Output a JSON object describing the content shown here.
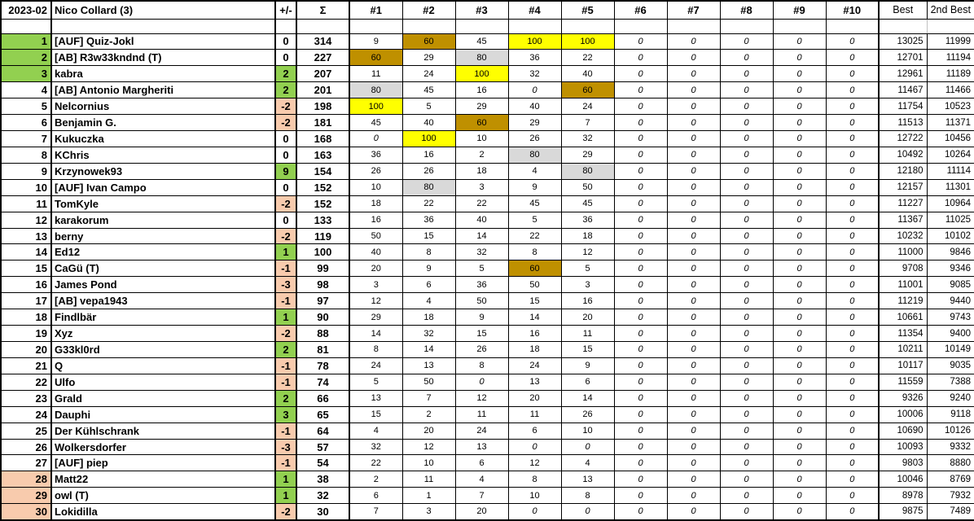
{
  "header": {
    "period": "2023-02",
    "player": "Nico Collard (3)",
    "delta_label": "+/-",
    "sum_label": "Σ",
    "rounds": [
      "#1",
      "#2",
      "#3",
      "#4",
      "#5",
      "#6",
      "#7",
      "#8",
      "#9",
      "#10"
    ],
    "best_label": "Best",
    "second_best_label": "2nd Best"
  },
  "colors": {
    "green": "#92D050",
    "orange": "#F8CBAD",
    "yellow": "#FFFF00",
    "gray": "#D9D9D9",
    "dark_yellow": "#BF9000"
  },
  "highlights": {
    "100": "yellow",
    "80": "gray",
    "60": "dark_yellow"
  },
  "score_zero_italic": true,
  "rows": [
    {
      "rank": 1,
      "rank_bg": "green",
      "name": "[AUF] Quiz-Jokl",
      "delta": 0,
      "total": 314,
      "scores": [
        9,
        60,
        45,
        100,
        100,
        0,
        0,
        0,
        0,
        0
      ],
      "best": 13025,
      "second_best": 11999
    },
    {
      "rank": 2,
      "rank_bg": "green",
      "name": "[AB] R3w33kndnd (T)",
      "delta": 0,
      "total": 227,
      "scores": [
        60,
        29,
        80,
        36,
        22,
        0,
        0,
        0,
        0,
        0
      ],
      "best": 12701,
      "second_best": 11194
    },
    {
      "rank": 3,
      "rank_bg": "green",
      "name": "kabra",
      "delta": 2,
      "total": 207,
      "scores": [
        11,
        24,
        100,
        32,
        40,
        0,
        0,
        0,
        0,
        0
      ],
      "best": 12961,
      "second_best": 11189
    },
    {
      "rank": 4,
      "rank_bg": null,
      "name": "[AB] Antonio Margheriti",
      "delta": 2,
      "total": 201,
      "scores": [
        80,
        45,
        16,
        0,
        60,
        0,
        0,
        0,
        0,
        0
      ],
      "best": 11467,
      "second_best": 11466
    },
    {
      "rank": 5,
      "rank_bg": null,
      "name": "Nelcornius",
      "delta": -2,
      "total": 198,
      "scores": [
        100,
        5,
        29,
        40,
        24,
        0,
        0,
        0,
        0,
        0
      ],
      "best": 11754,
      "second_best": 10523
    },
    {
      "rank": 6,
      "rank_bg": null,
      "name": "Benjamin G.",
      "delta": -2,
      "total": 181,
      "scores": [
        45,
        40,
        60,
        29,
        7,
        0,
        0,
        0,
        0,
        0
      ],
      "best": 11513,
      "second_best": 11371
    },
    {
      "rank": 7,
      "rank_bg": null,
      "name": "Kukuczka",
      "delta": 0,
      "total": 168,
      "scores": [
        0,
        100,
        10,
        26,
        32,
        0,
        0,
        0,
        0,
        0
      ],
      "best": 12722,
      "second_best": 10456
    },
    {
      "rank": 8,
      "rank_bg": null,
      "name": "KChris",
      "delta": 0,
      "total": 163,
      "scores": [
        36,
        16,
        2,
        80,
        29,
        0,
        0,
        0,
        0,
        0
      ],
      "best": 10492,
      "second_best": 10264
    },
    {
      "rank": 9,
      "rank_bg": null,
      "name": "Krzynowek93",
      "delta": 9,
      "total": 154,
      "scores": [
        26,
        26,
        18,
        4,
        80,
        0,
        0,
        0,
        0,
        0
      ],
      "best": 12180,
      "second_best": 11114
    },
    {
      "rank": 10,
      "rank_bg": null,
      "name": "[AUF] Ivan Campo",
      "delta": 0,
      "total": 152,
      "scores": [
        10,
        80,
        3,
        9,
        50,
        0,
        0,
        0,
        0,
        0
      ],
      "best": 12157,
      "second_best": 11301
    },
    {
      "rank": 11,
      "rank_bg": null,
      "name": "TomKyle",
      "delta": -2,
      "total": 152,
      "scores": [
        18,
        22,
        22,
        45,
        45,
        0,
        0,
        0,
        0,
        0
      ],
      "best": 11227,
      "second_best": 10964
    },
    {
      "rank": 12,
      "rank_bg": null,
      "name": "karakorum",
      "delta": 0,
      "total": 133,
      "scores": [
        16,
        36,
        40,
        5,
        36,
        0,
        0,
        0,
        0,
        0
      ],
      "best": 11367,
      "second_best": 11025
    },
    {
      "rank": 13,
      "rank_bg": null,
      "name": "berny",
      "delta": -2,
      "total": 119,
      "scores": [
        50,
        15,
        14,
        22,
        18,
        0,
        0,
        0,
        0,
        0
      ],
      "best": 10232,
      "second_best": 10102
    },
    {
      "rank": 14,
      "rank_bg": null,
      "name": "Ed12",
      "delta": 1,
      "total": 100,
      "scores": [
        40,
        8,
        32,
        8,
        12,
        0,
        0,
        0,
        0,
        0
      ],
      "best": 11000,
      "second_best": 9846
    },
    {
      "rank": 15,
      "rank_bg": null,
      "name": "CaGü (T)",
      "delta": -1,
      "total": 99,
      "scores": [
        20,
        9,
        5,
        60,
        5,
        0,
        0,
        0,
        0,
        0
      ],
      "best": 9708,
      "second_best": 9346
    },
    {
      "rank": 16,
      "rank_bg": null,
      "name": "James Pond",
      "delta": -3,
      "total": 98,
      "scores": [
        3,
        6,
        36,
        50,
        3,
        0,
        0,
        0,
        0,
        0
      ],
      "best": 11001,
      "second_best": 9085
    },
    {
      "rank": 17,
      "rank_bg": null,
      "name": "[AB] vepa1943",
      "delta": -1,
      "total": 97,
      "scores": [
        12,
        4,
        50,
        15,
        16,
        0,
        0,
        0,
        0,
        0
      ],
      "best": 11219,
      "second_best": 9440
    },
    {
      "rank": 18,
      "rank_bg": null,
      "name": "Findlbär",
      "delta": 1,
      "total": 90,
      "scores": [
        29,
        18,
        9,
        14,
        20,
        0,
        0,
        0,
        0,
        0
      ],
      "best": 10661,
      "second_best": 9743
    },
    {
      "rank": 19,
      "rank_bg": null,
      "name": "Xyz",
      "delta": -2,
      "total": 88,
      "scores": [
        14,
        32,
        15,
        16,
        11,
        0,
        0,
        0,
        0,
        0
      ],
      "best": 11354,
      "second_best": 9400
    },
    {
      "rank": 20,
      "rank_bg": null,
      "name": "G33kl0rd",
      "delta": 2,
      "total": 81,
      "scores": [
        8,
        14,
        26,
        18,
        15,
        0,
        0,
        0,
        0,
        0
      ],
      "best": 10211,
      "second_best": 10149
    },
    {
      "rank": 21,
      "rank_bg": null,
      "name": "Q",
      "delta": -1,
      "total": 78,
      "scores": [
        24,
        13,
        8,
        24,
        9,
        0,
        0,
        0,
        0,
        0
      ],
      "best": 10117,
      "second_best": 9035
    },
    {
      "rank": 22,
      "rank_bg": null,
      "name": "Ulfo",
      "delta": -1,
      "total": 74,
      "scores": [
        5,
        50,
        0,
        13,
        6,
        0,
        0,
        0,
        0,
        0
      ],
      "best": 11559,
      "second_best": 7388
    },
    {
      "rank": 23,
      "rank_bg": null,
      "name": "Grald",
      "delta": 2,
      "total": 66,
      "scores": [
        13,
        7,
        12,
        20,
        14,
        0,
        0,
        0,
        0,
        0
      ],
      "best": 9326,
      "second_best": 9240
    },
    {
      "rank": 24,
      "rank_bg": null,
      "name": "Dauphi",
      "delta": 3,
      "total": 65,
      "scores": [
        15,
        2,
        11,
        11,
        26,
        0,
        0,
        0,
        0,
        0
      ],
      "best": 10006,
      "second_best": 9118
    },
    {
      "rank": 25,
      "rank_bg": null,
      "name": "Der Kühlschrank",
      "delta": -1,
      "total": 64,
      "scores": [
        4,
        20,
        24,
        6,
        10,
        0,
        0,
        0,
        0,
        0
      ],
      "best": 10690,
      "second_best": 10126
    },
    {
      "rank": 26,
      "rank_bg": null,
      "name": "Wolkersdorfer",
      "delta": -3,
      "total": 57,
      "scores": [
        32,
        12,
        13,
        0,
        0,
        0,
        0,
        0,
        0,
        0
      ],
      "best": 10093,
      "second_best": 9332
    },
    {
      "rank": 27,
      "rank_bg": null,
      "name": "[AUF] piep",
      "delta": -1,
      "total": 54,
      "scores": [
        22,
        10,
        6,
        12,
        4,
        0,
        0,
        0,
        0,
        0
      ],
      "best": 9803,
      "second_best": 8880
    },
    {
      "rank": 28,
      "rank_bg": "orange",
      "name": "Matt22",
      "delta": 1,
      "total": 38,
      "scores": [
        2,
        11,
        4,
        8,
        13,
        0,
        0,
        0,
        0,
        0
      ],
      "best": 10046,
      "second_best": 8769
    },
    {
      "rank": 29,
      "rank_bg": "orange",
      "name": "owl (T)",
      "delta": 1,
      "total": 32,
      "scores": [
        6,
        1,
        7,
        10,
        8,
        0,
        0,
        0,
        0,
        0
      ],
      "best": 8978,
      "second_best": 7932
    },
    {
      "rank": 30,
      "rank_bg": "orange",
      "name": "Lokidilla",
      "delta": -2,
      "total": 30,
      "scores": [
        7,
        3,
        20,
        0,
        0,
        0,
        0,
        0,
        0,
        0
      ],
      "best": 9875,
      "second_best": 7489
    }
  ]
}
